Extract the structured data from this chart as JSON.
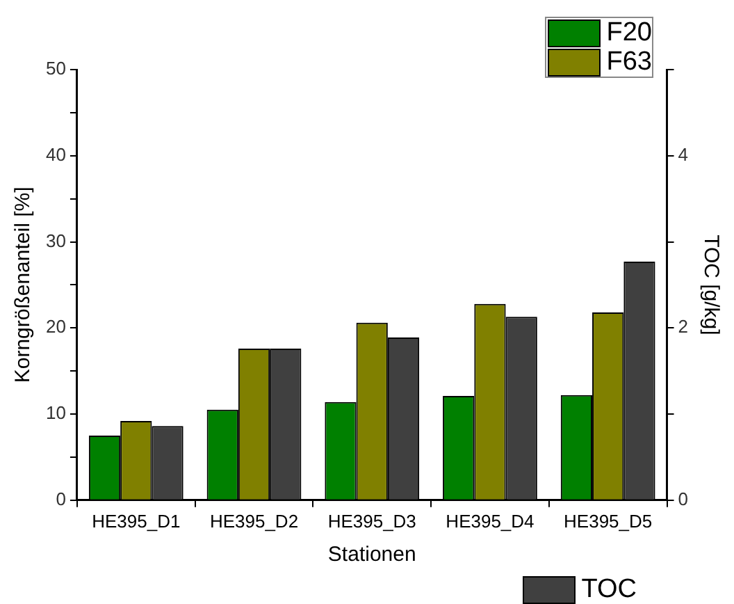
{
  "chart_data": {
    "type": "bar",
    "xlabel": "Stationen",
    "ylabel": "Korngrößenanteil [%]",
    "y2label": "TOC [g/kg]",
    "categories": [
      "HE395_D1",
      "HE395_D2",
      "HE395_D3",
      "HE395_D4",
      "HE395_D5"
    ],
    "series": [
      {
        "name": "F20",
        "color": "#008000",
        "values": [
          7.5,
          10.5,
          11.4,
          12.1,
          12.2
        ]
      },
      {
        "name": "F63",
        "color": "#808000",
        "values": [
          9.2,
          17.6,
          20.6,
          22.8,
          21.8
        ]
      },
      {
        "name": "TOC",
        "color": "#404040",
        "axis": "y2",
        "values": [
          0.86,
          1.76,
          1.89,
          2.13,
          2.77
        ]
      }
    ],
    "ylim": [
      0,
      50
    ],
    "yticks": [
      0,
      {
        "value": 5,
        "label": null
      },
      10,
      {
        "value": 15,
        "label": null
      },
      20,
      {
        "value": 25,
        "label": null
      },
      30,
      {
        "value": 35,
        "label": null
      },
      40,
      {
        "value": 45,
        "label": null
      },
      50
    ],
    "y2lim": [
      0,
      5
    ],
    "y2ticks": [
      0,
      {
        "value": 1,
        "label": null
      },
      2,
      {
        "value": 3,
        "label": null
      },
      4,
      {
        "value": 5,
        "label": null
      }
    ],
    "grid": false,
    "legend": "right"
  }
}
